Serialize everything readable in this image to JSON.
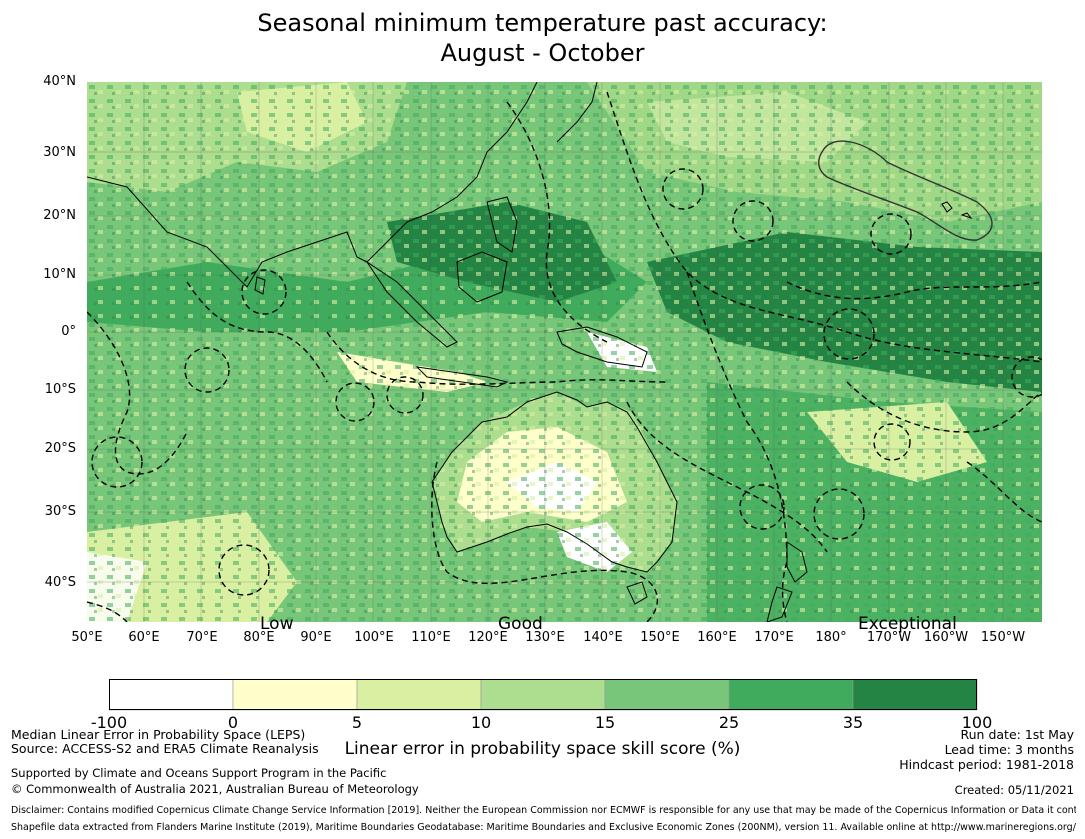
{
  "title": {
    "line1": "Seasonal minimum temperature past accuracy:",
    "line2": "August - October"
  },
  "map": {
    "lat_labels": [
      "40°N",
      "30°N",
      "20°N",
      "10°N",
      "0°",
      "10°S",
      "20°S",
      "30°S",
      "40°S"
    ],
    "lon_labels": [
      "50°E",
      "60°E",
      "70°E",
      "80°E",
      "90°E",
      "100°E",
      "110°E",
      "120°E",
      "130°E",
      "140°E",
      "150°E",
      "160°E",
      "170°E",
      "180°",
      "170°W",
      "160°W",
      "150°W"
    ],
    "band_labels": {
      "low": "Low",
      "good": "Good",
      "exceptional": "Exceptional"
    }
  },
  "colorbar": {
    "ticks": [
      "-100",
      "0",
      "5",
      "10",
      "15",
      "25",
      "35",
      "100"
    ],
    "colors": [
      "#ffffff",
      "#ffffcc",
      "#d9f0a3",
      "#addd8e",
      "#78c679",
      "#41ab5d",
      "#238443"
    ],
    "label": "Linear error in probability space skill score (%)"
  },
  "footer": {
    "metric": "Median Linear Error in Probability Space (LEPS)",
    "source": "Source: ACCESS-S2 and ERA5 Climate Reanalysis",
    "support": "Supported by Climate and Oceans Support Program in the Pacific",
    "copyright": "© Commonwealth of Australia 2021, Australian Bureau of Meteorology",
    "run_date": "Run date: 1st May",
    "lead_time": "Lead time: 3 months",
    "hindcast": "Hindcast period: 1981-2018",
    "created": "Created: 05/11/2021",
    "disclaimer1": "Disclaimer: Contains modified Copernicus Climate Change Service Information [2019]. Neither the European Commission nor ECMWF is responsible for any use that may be made of the Copernicus Information or Data it contains.",
    "disclaimer2": "Shapefile data extracted from Flanders Marine Institute (2019), Maritime Boundaries Geodatabase: Maritime Boundaries and Exclusive Economic Zones (200NM), version 11. Available online at http://www.marineregions.org/."
  }
}
